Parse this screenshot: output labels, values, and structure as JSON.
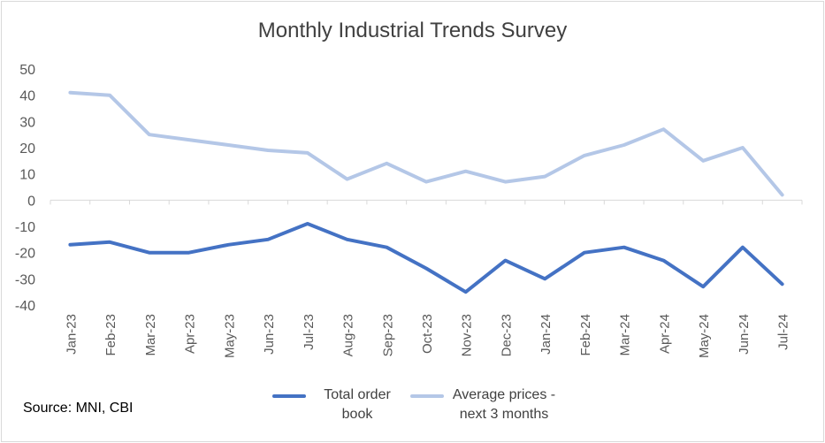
{
  "chart_data": {
    "type": "line",
    "title": "Monthly Industrial Trends Survey",
    "categories": [
      "Jan-23",
      "Feb-23",
      "Mar-23",
      "Apr-23",
      "May-23",
      "Jun-23",
      "Jul-23",
      "Aug-23",
      "Sep-23",
      "Oct-23",
      "Nov-23",
      "Dec-23",
      "Jan-24",
      "Feb-24",
      "Mar-24",
      "Apr-24",
      "May-24",
      "Jun-24",
      "Jul-24"
    ],
    "series": [
      {
        "name": "Total order book",
        "color": "#4472c4",
        "values": [
          -17,
          -16,
          -20,
          -20,
          -17,
          -15,
          -9,
          -15,
          -18,
          -26,
          -35,
          -23,
          -30,
          -20,
          -18,
          -23,
          -33,
          -18,
          -32
        ]
      },
      {
        "name": "Average prices - next 3 months",
        "color": "#b4c7e7",
        "values": [
          41,
          40,
          25,
          23,
          21,
          19,
          18,
          8,
          14,
          7,
          11,
          7,
          9,
          17,
          21,
          27,
          15,
          20,
          2
        ]
      }
    ],
    "ylim": [
      -40,
      50
    ],
    "yticks": [
      50,
      40,
      30,
      20,
      10,
      0,
      -10,
      -20,
      -30,
      -40
    ],
    "grid": false,
    "legend_position": "bottom"
  },
  "legend": {
    "total_line1": "Total order",
    "total_line2": "book",
    "prices_line1": "Average prices -",
    "prices_line2": "next 3 months"
  },
  "source": "Source: MNI, CBI"
}
